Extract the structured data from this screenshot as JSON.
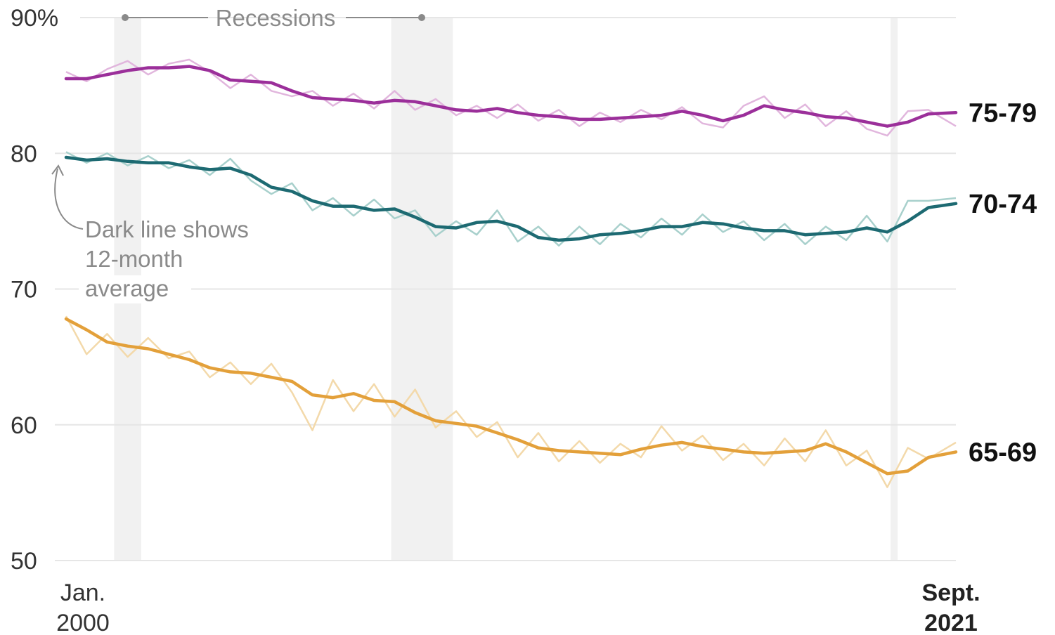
{
  "chart_data": {
    "type": "line",
    "title": "",
    "xlabel": "",
    "ylabel": "",
    "ylim": [
      50,
      90
    ],
    "y_ticks": [
      "90%",
      "80",
      "70",
      "60",
      "50"
    ],
    "y_tick_values": [
      90,
      80,
      70,
      60,
      50
    ],
    "x_range": [
      2000.0,
      2021.67
    ],
    "x_labels": {
      "start_line1": "Jan.",
      "start_line2": "2000",
      "end_line1": "Sept.",
      "end_line2": "2021"
    },
    "recessions": {
      "label": "Recessions",
      "periods": [
        [
          2001.17,
          2001.83
        ],
        [
          2007.92,
          2009.42
        ],
        [
          2020.08,
          2020.25
        ]
      ]
    },
    "annotation": {
      "line1": "Dark line shows",
      "line2": "12-month",
      "line3": "average"
    },
    "grid": true,
    "legend": "direct labels at right end",
    "series": [
      {
        "name": "75-79",
        "color": "#9b2f9a",
        "light_color": "#e1b6dd",
        "x": [
          2000,
          2000.5,
          2001,
          2001.5,
          2002,
          2002.5,
          2003,
          2003.5,
          2004,
          2004.5,
          2005,
          2005.5,
          2006,
          2006.5,
          2007,
          2007.5,
          2008,
          2008.5,
          2009,
          2009.5,
          2010,
          2010.5,
          2011,
          2011.5,
          2012,
          2012.5,
          2013,
          2013.5,
          2014,
          2014.5,
          2015,
          2015.5,
          2016,
          2016.5,
          2017,
          2017.5,
          2018,
          2018.5,
          2019,
          2019.5,
          2020,
          2020.5,
          2021,
          2021.67
        ],
        "avg": [
          85.5,
          85.5,
          85.8,
          86.1,
          86.3,
          86.3,
          86.4,
          86.1,
          85.4,
          85.3,
          85.2,
          84.6,
          84.1,
          84.0,
          83.9,
          83.7,
          83.9,
          83.8,
          83.5,
          83.2,
          83.1,
          83.3,
          83.0,
          82.8,
          82.7,
          82.5,
          82.5,
          82.6,
          82.7,
          82.8,
          83.1,
          82.8,
          82.4,
          82.8,
          83.5,
          83.2,
          83.0,
          82.7,
          82.6,
          82.3,
          82.0,
          82.3,
          82.9,
          83.0
        ],
        "monthly": [
          86.0,
          85.3,
          86.2,
          86.8,
          85.8,
          86.6,
          86.9,
          86.0,
          84.8,
          85.8,
          84.6,
          84.2,
          84.6,
          83.5,
          84.4,
          83.3,
          84.6,
          83.2,
          84.0,
          82.8,
          83.5,
          82.6,
          83.6,
          82.4,
          83.2,
          82.0,
          83.0,
          82.3,
          83.2,
          82.5,
          83.4,
          82.2,
          81.9,
          83.5,
          84.2,
          82.6,
          83.6,
          82.0,
          83.1,
          81.8,
          81.3,
          83.1,
          83.2,
          82.0
        ]
      },
      {
        "name": "70-74",
        "color": "#1d6a72",
        "light_color": "#a8d0cc",
        "x": [
          2000,
          2000.5,
          2001,
          2001.5,
          2002,
          2002.5,
          2003,
          2003.5,
          2004,
          2004.5,
          2005,
          2005.5,
          2006,
          2006.5,
          2007,
          2007.5,
          2008,
          2008.5,
          2009,
          2009.5,
          2010,
          2010.5,
          2011,
          2011.5,
          2012,
          2012.5,
          2013,
          2013.5,
          2014,
          2014.5,
          2015,
          2015.5,
          2016,
          2016.5,
          2017,
          2017.5,
          2018,
          2018.5,
          2019,
          2019.5,
          2020,
          2020.5,
          2021,
          2021.67
        ],
        "avg": [
          79.7,
          79.5,
          79.6,
          79.4,
          79.3,
          79.3,
          79.0,
          78.8,
          78.9,
          78.4,
          77.5,
          77.2,
          76.5,
          76.1,
          76.1,
          75.8,
          75.9,
          75.3,
          74.6,
          74.5,
          74.9,
          75.0,
          74.6,
          73.8,
          73.6,
          73.7,
          74.0,
          74.1,
          74.3,
          74.6,
          74.6,
          74.9,
          74.8,
          74.5,
          74.3,
          74.3,
          74.0,
          74.1,
          74.2,
          74.5,
          74.2,
          75.0,
          76.0,
          76.3
        ],
        "monthly": [
          80.1,
          79.3,
          80.0,
          79.1,
          79.8,
          78.9,
          79.5,
          78.4,
          79.6,
          78.0,
          77.0,
          77.8,
          75.8,
          76.7,
          75.4,
          76.6,
          75.2,
          75.8,
          73.9,
          75.0,
          74.0,
          75.8,
          73.5,
          74.6,
          73.2,
          74.6,
          73.3,
          74.8,
          73.8,
          75.2,
          74.0,
          75.5,
          74.2,
          75.0,
          73.6,
          74.8,
          73.3,
          74.6,
          73.6,
          75.4,
          73.5,
          76.5,
          76.5,
          76.7
        ]
      },
      {
        "name": "65-69",
        "color": "#e3a03a",
        "light_color": "#f3d9aa",
        "x": [
          2000,
          2000.5,
          2001,
          2001.5,
          2002,
          2002.5,
          2003,
          2003.5,
          2004,
          2004.5,
          2005,
          2005.5,
          2006,
          2006.5,
          2007,
          2007.5,
          2008,
          2008.5,
          2009,
          2009.5,
          2010,
          2010.5,
          2011,
          2011.5,
          2012,
          2012.5,
          2013,
          2013.5,
          2014,
          2014.5,
          2015,
          2015.5,
          2016,
          2016.5,
          2017,
          2017.5,
          2018,
          2018.5,
          2019,
          2019.5,
          2020,
          2020.5,
          2021,
          2021.67
        ],
        "avg": [
          67.8,
          67.0,
          66.1,
          65.8,
          65.6,
          65.2,
          64.8,
          64.2,
          63.9,
          63.8,
          63.5,
          63.2,
          62.2,
          62.0,
          62.3,
          61.8,
          61.7,
          60.9,
          60.3,
          60.1,
          59.9,
          59.4,
          58.9,
          58.3,
          58.1,
          58.0,
          57.9,
          57.8,
          58.2,
          58.5,
          58.7,
          58.4,
          58.2,
          58.0,
          57.9,
          58.0,
          58.1,
          58.6,
          58.0,
          57.2,
          56.4,
          56.6,
          57.6,
          58.0
        ],
        "monthly": [
          68.0,
          65.2,
          66.7,
          65.0,
          66.4,
          64.9,
          65.4,
          63.5,
          64.6,
          63.0,
          64.5,
          62.4,
          59.6,
          63.3,
          61.0,
          63.0,
          60.6,
          62.6,
          59.8,
          61.0,
          59.1,
          60.2,
          57.6,
          59.4,
          57.3,
          58.8,
          57.2,
          58.6,
          57.6,
          59.9,
          58.1,
          59.2,
          57.4,
          58.6,
          57.0,
          59.0,
          57.3,
          59.6,
          57.0,
          58.1,
          55.4,
          58.3,
          57.5,
          58.7
        ]
      }
    ]
  }
}
